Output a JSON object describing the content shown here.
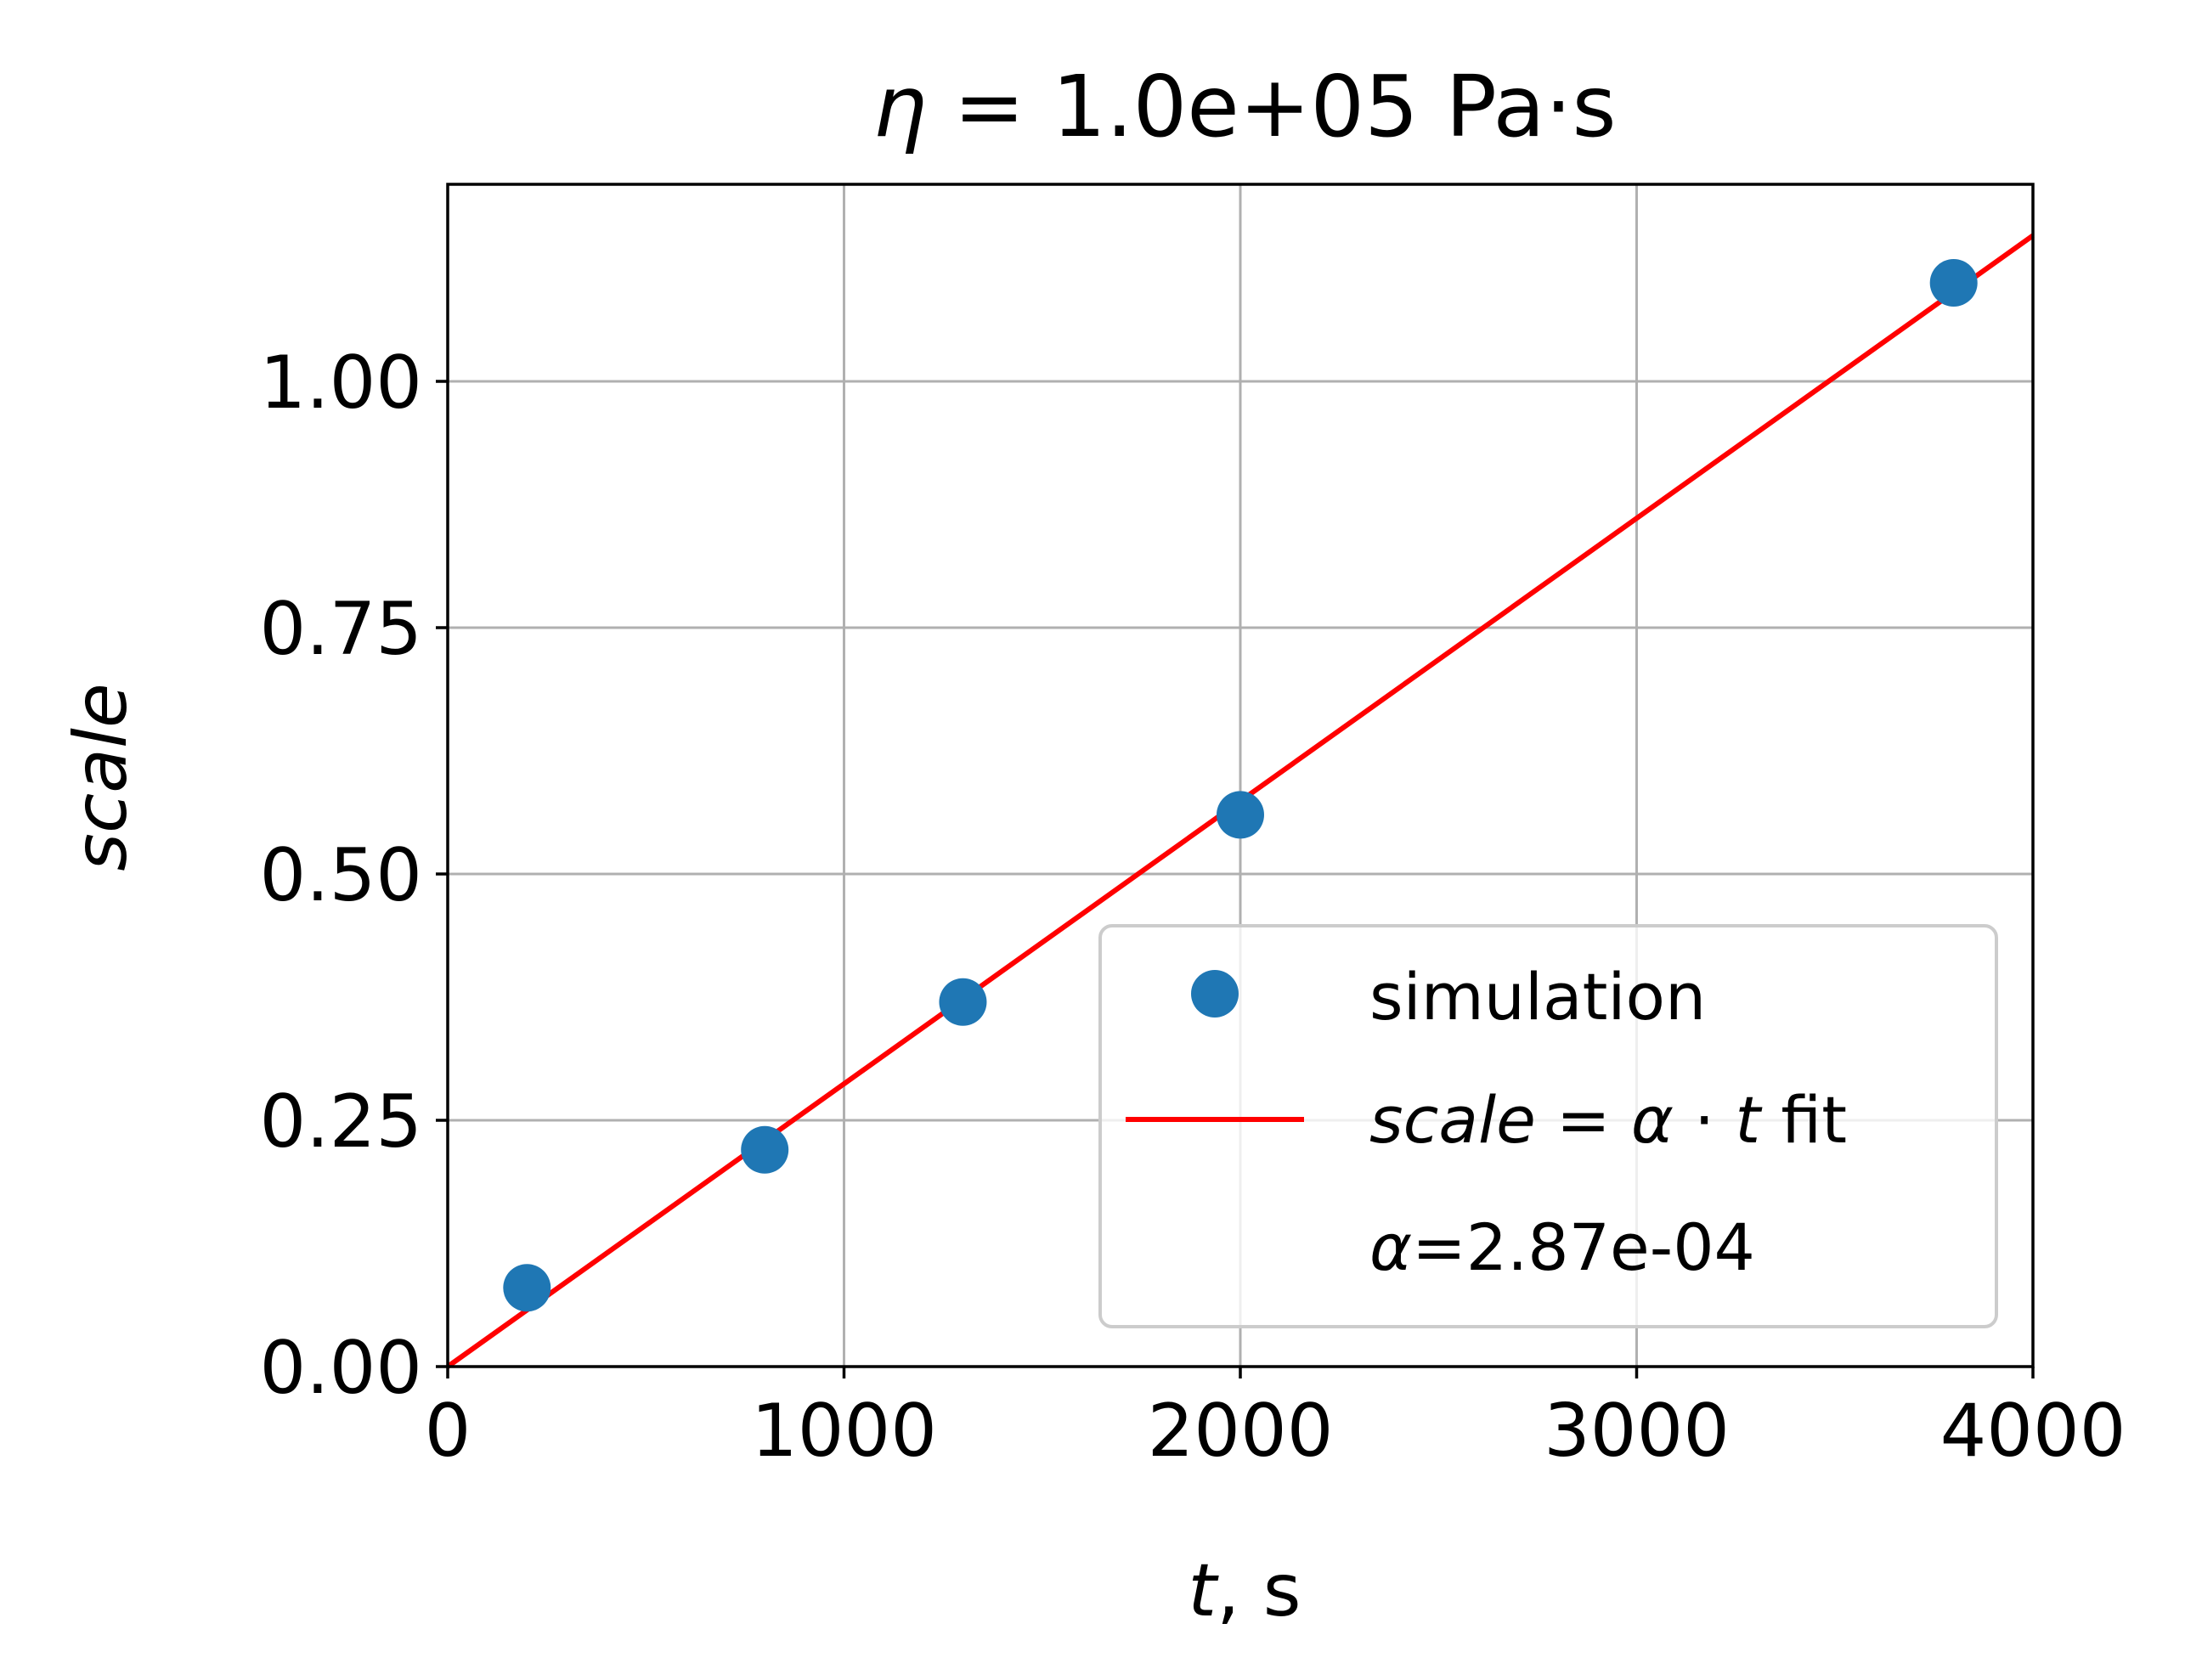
{
  "chart_data": {
    "type": "scatter",
    "title": {
      "symbol": "η",
      "text": " = 1.0e+05 Pa·s"
    },
    "xlabel": {
      "var": "t",
      "unit": ", s"
    },
    "ylabel": "scale",
    "xlim": [
      0,
      4000
    ],
    "ylim": [
      0,
      1.2
    ],
    "xticks": [
      0,
      1000,
      2000,
      3000,
      4000
    ],
    "xtick_labels": [
      "0",
      "1000",
      "2000",
      "3000",
      "4000"
    ],
    "yticks": [
      0,
      0.25,
      0.5,
      0.75,
      1.0
    ],
    "ytick_labels": [
      "0.00",
      "0.25",
      "0.50",
      "0.75",
      "1.00"
    ],
    "grid": true,
    "legend_position": "lower-right",
    "series": [
      {
        "name": "simulation",
        "kind": "points",
        "color": "#1f77b4",
        "x": [
          200,
          800,
          1300,
          2000,
          3800
        ],
        "y": [
          0.08,
          0.22,
          0.37,
          0.56,
          1.1
        ]
      },
      {
        "name": "scale = α · t fit",
        "kind": "line",
        "color": "#ff0000",
        "x": [
          0,
          4000
        ],
        "y": [
          0,
          1.148
        ]
      }
    ],
    "legend": {
      "entries": [
        {
          "label": "simulation"
        },
        {
          "label_var": "scale",
          "label_eq": " = ",
          "label_alpha": "α",
          "label_dot": " · ",
          "label_t": "t",
          "label_suffix": " fit"
        },
        {
          "label_alpha": "α",
          "label_rest": "=2.87e-04"
        }
      ]
    }
  }
}
